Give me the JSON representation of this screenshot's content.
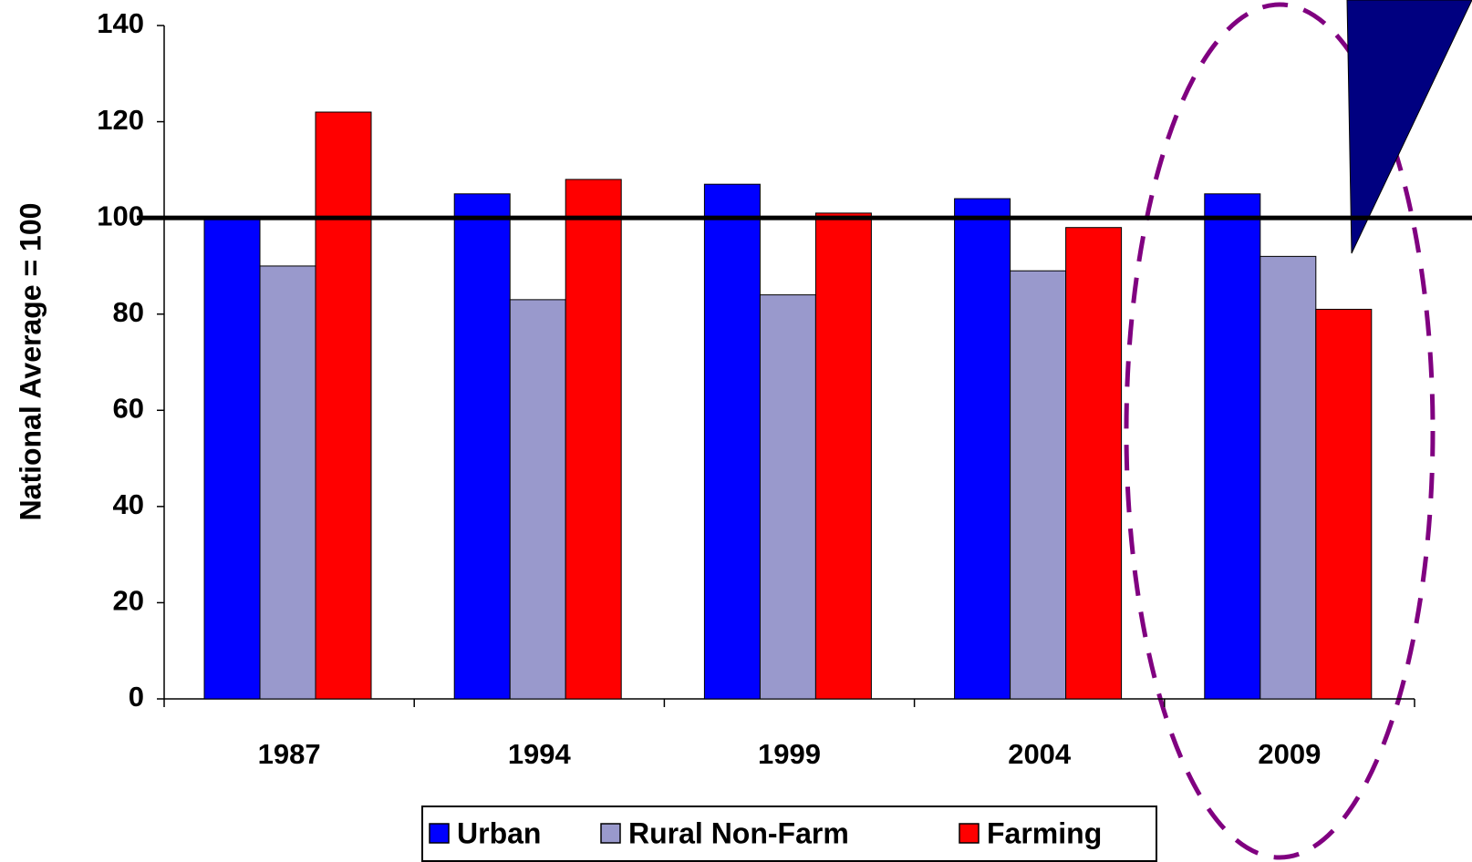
{
  "chart_data": {
    "type": "bar",
    "y_label": "National Average = 100",
    "categories": [
      "1987",
      "1994",
      "1999",
      "2004",
      "2009"
    ],
    "series": [
      {
        "name": "Urban",
        "color": "#0000ff",
        "values": [
          100,
          105,
          107,
          104,
          105
        ]
      },
      {
        "name": "Rural Non-Farm",
        "color": "#9999cc",
        "values": [
          90,
          83,
          84,
          89,
          92
        ]
      },
      {
        "name": "Farming",
        "color": "#ff0000",
        "values": [
          122,
          108,
          101,
          98,
          81
        ]
      }
    ],
    "reference_line": 100,
    "ylim": [
      0,
      140
    ],
    "yticks": [
      0,
      20,
      40,
      60,
      80,
      100,
      120,
      140
    ],
    "legend": "bottom"
  }
}
